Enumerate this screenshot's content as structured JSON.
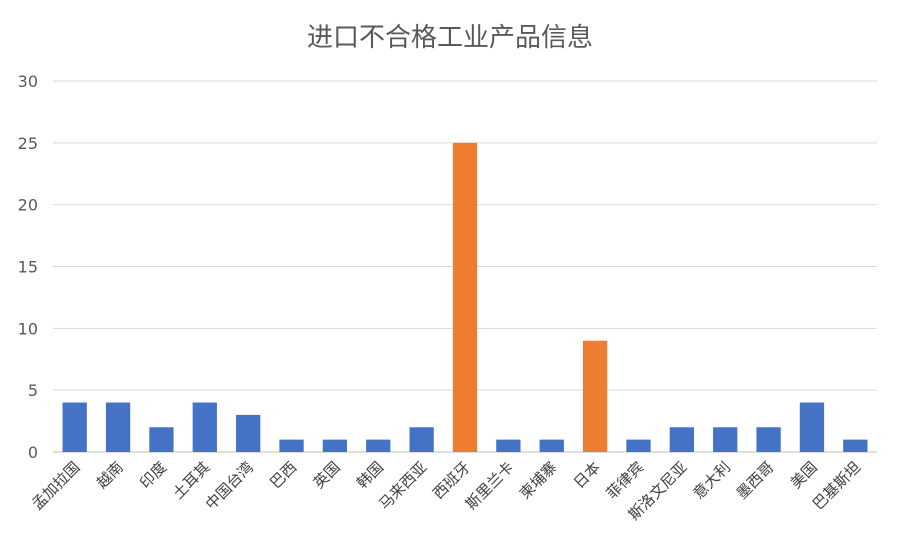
{
  "chart_data": {
    "type": "bar",
    "title": "进口不合格工业产品信息",
    "xlabel": "",
    "ylabel": "",
    "ylim": [
      0,
      30
    ],
    "yticks": [
      0,
      5,
      10,
      15,
      20,
      25,
      30
    ],
    "grid": true,
    "legend": "none",
    "categories": [
      "孟加拉国",
      "越南",
      "印度",
      "土耳其",
      "中国台湾",
      "巴西",
      "英国",
      "韩国",
      "马来西亚",
      "西班牙",
      "斯里兰卡",
      "柬埔寨",
      "日本",
      "菲律宾",
      "斯洛文尼亚",
      "意大利",
      "墨西哥",
      "美国",
      "巴基斯坦"
    ],
    "values": [
      4,
      4,
      2,
      4,
      3,
      1,
      1,
      1,
      2,
      25,
      1,
      1,
      9,
      1,
      2,
      2,
      2,
      4,
      1
    ],
    "colors": {
      "default": "#4472c4",
      "highlight": "#ed7d31"
    },
    "highlighted": [
      "西班牙",
      "日本"
    ]
  }
}
